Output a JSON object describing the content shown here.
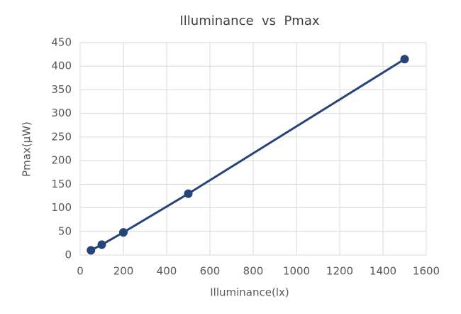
{
  "chart_data": {
    "type": "line",
    "title": "Illuminance  vs  Pmax",
    "x_label": "Illuminance(lx)",
    "y_label": "Pmax(μW)",
    "x": [
      50,
      100,
      200,
      500,
      1500
    ],
    "series": [
      {
        "color": "#264478",
        "values": [
          10,
          22,
          48,
          130,
          415
        ]
      }
    ],
    "xlim": [
      0,
      1600
    ],
    "xticks": [
      0,
      200,
      400,
      600,
      800,
      1000,
      1200,
      1400,
      1600
    ],
    "ylim": [
      0,
      450
    ],
    "yticks": [
      0,
      50,
      100,
      150,
      200,
      250,
      300,
      350,
      400,
      450
    ],
    "grid": true
  }
}
